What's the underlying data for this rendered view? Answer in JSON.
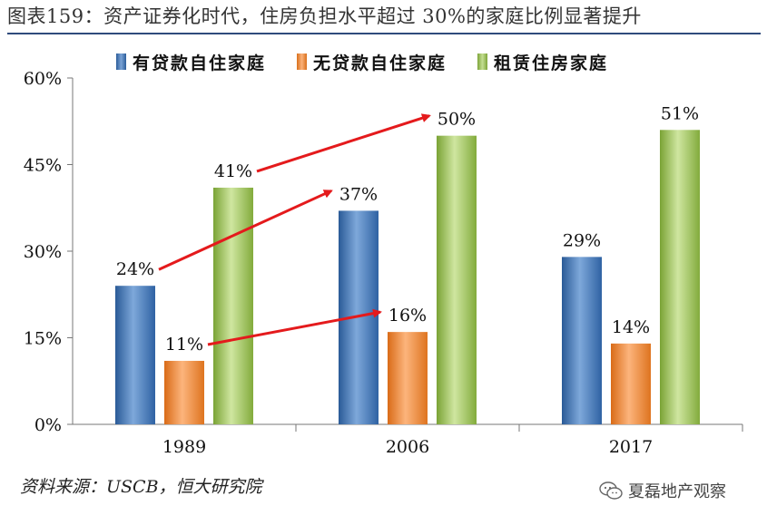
{
  "page": {
    "title": "图表159：资产证券化时代，住房负担水平超过 30%的家庭比例显著提升",
    "source": "资料来源：USCB，恒大研究院",
    "watermark": "夏磊地产观察",
    "watermark_icon": "wechat-icon"
  },
  "chart_data": {
    "type": "bar",
    "title": "",
    "xlabel": "",
    "ylabel": "",
    "categories": [
      "1989",
      "2006",
      "2017"
    ],
    "series": [
      {
        "name": "有贷款自住家庭",
        "values": [
          24,
          37,
          29
        ],
        "labels": [
          "24%",
          "37%",
          "29%"
        ],
        "color": "#4f81bd"
      },
      {
        "name": "无贷款自住家庭",
        "values": [
          11,
          16,
          14
        ],
        "labels": [
          "11%",
          "16%",
          "14%"
        ],
        "color": "#f79646"
      },
      {
        "name": "租赁住房家庭",
        "values": [
          41,
          50,
          51
        ],
        "labels": [
          "41%",
          "50%",
          "51%"
        ],
        "color": "#9bbb59"
      }
    ],
    "ylim": [
      0,
      60
    ],
    "yticks": [
      0,
      15,
      30,
      45,
      60
    ],
    "ytick_labels": [
      "0%",
      "15%",
      "30%",
      "45%",
      "60%"
    ],
    "grid": false,
    "legend_position": "top",
    "annotations": [
      {
        "type": "arrow",
        "from_series": 0,
        "from_category": 0,
        "to_series": 0,
        "to_category": 1,
        "color": "#e41a1c"
      },
      {
        "type": "arrow",
        "from_series": 1,
        "from_category": 0,
        "to_series": 1,
        "to_category": 1,
        "color": "#e41a1c"
      },
      {
        "type": "arrow",
        "from_series": 2,
        "from_category": 0,
        "to_series": 2,
        "to_category": 1,
        "color": "#e41a1c"
      }
    ]
  }
}
